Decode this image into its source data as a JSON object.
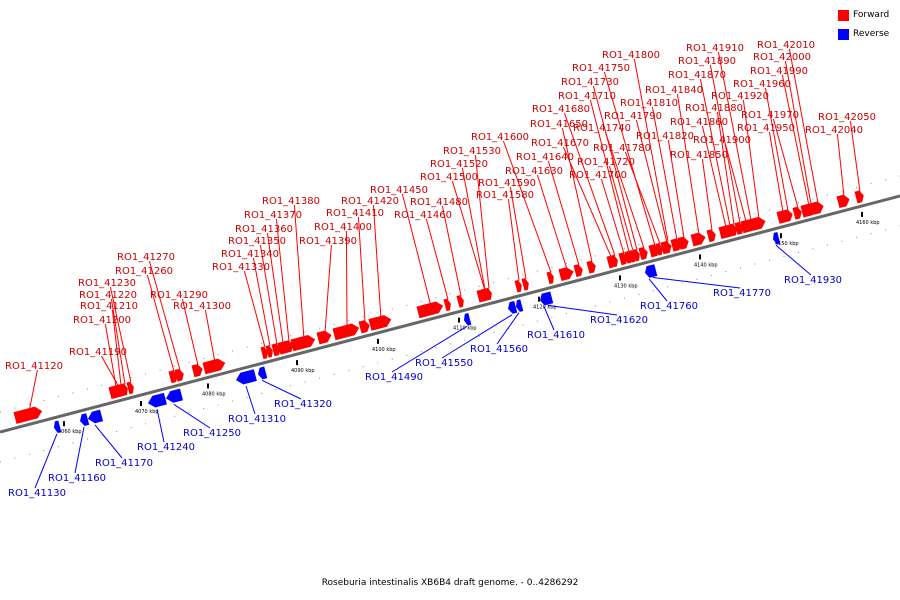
{
  "legend": {
    "forward": {
      "label": "Forward",
      "color": "#ff0000"
    },
    "reverse": {
      "label": "Reverse",
      "color": "#0000ff"
    }
  },
  "caption": "Roseburia intestinalis XB6B4 draft genome. - 0..4286292",
  "axis_ticks": [
    "4060 kbp",
    "4070 kbp",
    "4080 kbp",
    "4090 kbp",
    "4100 kbp",
    "4110 kbp",
    "4120 kbp",
    "4130 kbp",
    "4140 kbp",
    "4150 kbp",
    "4160 kbp"
  ],
  "forward_genes": [
    "RO1_41120",
    "RO1_41190",
    "RO1_41200",
    "RO1_41210",
    "RO1_41220",
    "RO1_41230",
    "RO1_41260",
    "RO1_41270",
    "RO1_41290",
    "RO1_41300",
    "RO1_41330",
    "RO1_41340",
    "RO1_41350",
    "RO1_41360",
    "RO1_41370",
    "RO1_41380",
    "RO1_41390",
    "RO1_41400",
    "RO1_41410",
    "RO1_41420",
    "RO1_41450",
    "RO1_41460",
    "RO1_41480",
    "RO1_41500",
    "RO1_41520",
    "RO1_41530",
    "RO1_41580",
    "RO1_41590",
    "RO1_41600",
    "RO1_41630",
    "RO1_41640",
    "RO1_41650",
    "RO1_41670",
    "RO1_41680",
    "RO1_41700",
    "RO1_41710",
    "RO1_41720",
    "RO1_41730",
    "RO1_41740",
    "RO1_41750",
    "RO1_41780",
    "RO1_41790",
    "RO1_41800",
    "RO1_41810",
    "RO1_41820",
    "RO1_41840",
    "RO1_41850",
    "RO1_41860",
    "RO1_41870",
    "RO1_41880",
    "RO1_41890",
    "RO1_41900",
    "RO1_41910",
    "RO1_41920",
    "RO1_41950",
    "RO1_41960",
    "RO1_41970",
    "RO1_41990",
    "RO1_42000",
    "RO1_42010",
    "RO1_42040",
    "RO1_42050"
  ],
  "reverse_genes": [
    "RO1_41130",
    "RO1_41160",
    "RO1_41170",
    "RO1_41240",
    "RO1_41250",
    "RO1_41310",
    "RO1_41320",
    "RO1_41490",
    "RO1_41550",
    "RO1_41560",
    "RO1_41610",
    "RO1_41620",
    "RO1_41760",
    "RO1_41770",
    "RO1_41930"
  ]
}
